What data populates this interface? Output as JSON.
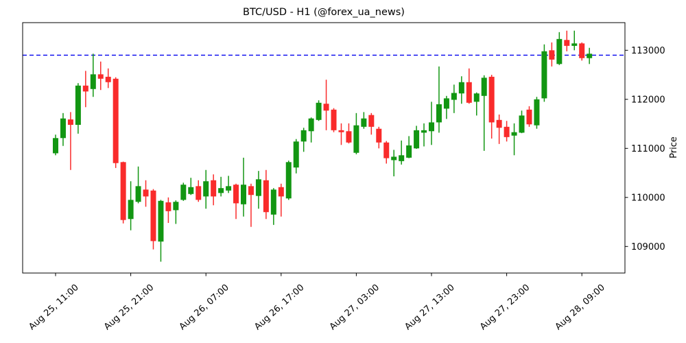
{
  "chart_data": {
    "type": "candlestick",
    "title": "BTC/USD - H1 (@forex_ua_news)",
    "ylabel": "Price",
    "yaxis_side": "right",
    "grid": false,
    "timeframe": "H1",
    "symbol": "BTC/USD",
    "ylim": [
      108460,
      113565
    ],
    "yticks": [
      109000,
      110000,
      111000,
      112000,
      113000
    ],
    "x_tick_indices": [
      0,
      10,
      20,
      30,
      40,
      50,
      60,
      70
    ],
    "x_tick_labels": [
      "Aug 25, 11:00",
      "Aug 25, 21:00",
      "Aug 26, 07:00",
      "Aug 26, 17:00",
      "Aug 27, 03:00",
      "Aug 27, 13:00",
      "Aug 27, 23:00",
      "Aug 28, 09:00"
    ],
    "hline": {
      "value": 112900,
      "color": "#0000ee",
      "style": "dashed"
    },
    "up_color": "#129612",
    "down_color": "#f92b2b",
    "background": "#ffffff",
    "candles_format": [
      "open",
      "high",
      "low",
      "close"
    ],
    "candles": [
      [
        110900,
        111280,
        110860,
        111210
      ],
      [
        111210,
        111720,
        111050,
        111610
      ],
      [
        111590,
        111740,
        110560,
        111480
      ],
      [
        111480,
        112330,
        111300,
        112280
      ],
      [
        112280,
        112580,
        111840,
        112160
      ],
      [
        112210,
        112930,
        112050,
        112510
      ],
      [
        112510,
        112770,
        112190,
        112420
      ],
      [
        112460,
        112630,
        112230,
        112350
      ],
      [
        112420,
        112450,
        110600,
        110700
      ],
      [
        110720,
        110730,
        109470,
        109540
      ],
      [
        109560,
        110330,
        109330,
        109950
      ],
      [
        109910,
        110630,
        109880,
        110230
      ],
      [
        110160,
        110350,
        109810,
        110020
      ],
      [
        110140,
        110170,
        108940,
        109110
      ],
      [
        109100,
        109950,
        108690,
        109930
      ],
      [
        109900,
        110000,
        109480,
        109720
      ],
      [
        109740,
        109940,
        109460,
        109910
      ],
      [
        109950,
        110300,
        109930,
        110260
      ],
      [
        110070,
        110400,
        110050,
        110210
      ],
      [
        110230,
        110350,
        109910,
        109950
      ],
      [
        110020,
        110560,
        109770,
        110330
      ],
      [
        110350,
        110470,
        109840,
        110020
      ],
      [
        110090,
        110420,
        110020,
        110190
      ],
      [
        110140,
        110440,
        110090,
        110230
      ],
      [
        110260,
        110280,
        109560,
        109880
      ],
      [
        109860,
        110810,
        109610,
        110260
      ],
      [
        110230,
        110280,
        109400,
        110050
      ],
      [
        110030,
        110540,
        109770,
        110370
      ],
      [
        110350,
        110560,
        109560,
        109700
      ],
      [
        109650,
        110190,
        109440,
        110160
      ],
      [
        110210,
        110280,
        109610,
        110020
      ],
      [
        109980,
        110750,
        109950,
        110720
      ],
      [
        110610,
        111190,
        110490,
        111140
      ],
      [
        111140,
        111420,
        110930,
        111370
      ],
      [
        111350,
        111630,
        111120,
        111610
      ],
      [
        111580,
        111980,
        111560,
        111930
      ],
      [
        111910,
        112400,
        111370,
        111770
      ],
      [
        111790,
        111820,
        111330,
        111370
      ],
      [
        111370,
        111510,
        111070,
        111330
      ],
      [
        111350,
        111510,
        111100,
        111120
      ],
      [
        110910,
        111720,
        110880,
        111470
      ],
      [
        111440,
        111740,
        111400,
        111610
      ],
      [
        111680,
        111720,
        111280,
        111440
      ],
      [
        111400,
        111440,
        111000,
        111120
      ],
      [
        111120,
        111150,
        110690,
        110800
      ],
      [
        110760,
        110970,
        110430,
        110830
      ],
      [
        110740,
        111160,
        110670,
        110860
      ],
      [
        110810,
        111250,
        110800,
        111060
      ],
      [
        111000,
        111460,
        110990,
        111370
      ],
      [
        111320,
        111510,
        111040,
        111370
      ],
      [
        111350,
        111950,
        111070,
        111530
      ],
      [
        111530,
        112670,
        111320,
        111900
      ],
      [
        111810,
        112070,
        111600,
        112020
      ],
      [
        111990,
        112300,
        111720,
        112130
      ],
      [
        112120,
        112470,
        111910,
        112350
      ],
      [
        112350,
        112630,
        111910,
        111930
      ],
      [
        111950,
        112140,
        111670,
        112120
      ],
      [
        112070,
        112490,
        110950,
        112440
      ],
      [
        112460,
        112500,
        111200,
        111530
      ],
      [
        111580,
        111690,
        111090,
        111420
      ],
      [
        111440,
        111560,
        111140,
        111230
      ],
      [
        111260,
        111510,
        110860,
        111330
      ],
      [
        111320,
        111770,
        111310,
        111670
      ],
      [
        111790,
        111860,
        111440,
        111490
      ],
      [
        111470,
        112050,
        111400,
        112000
      ],
      [
        112020,
        113120,
        111950,
        112980
      ],
      [
        113000,
        113160,
        112670,
        112810
      ],
      [
        112720,
        113370,
        112700,
        113230
      ],
      [
        113210,
        113400,
        112980,
        113090
      ],
      [
        113090,
        113400,
        113000,
        113140
      ],
      [
        113140,
        113160,
        112790,
        112840
      ],
      [
        112840,
        113050,
        112720,
        112930
      ]
    ]
  }
}
